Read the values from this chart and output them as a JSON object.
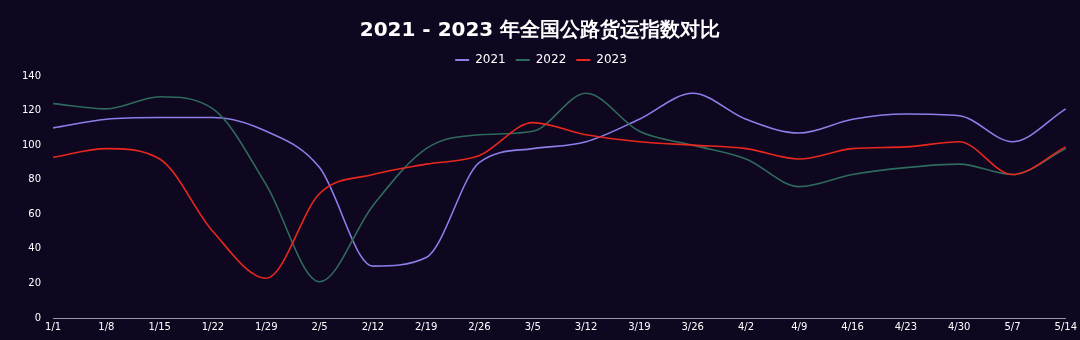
{
  "chart_data": {
    "type": "line",
    "title": "2021 - 2023 年全国公路货运指数对比",
    "categories": [
      "1/1",
      "1/8",
      "1/15",
      "1/22",
      "1/29",
      "2/5",
      "2/12",
      "2/19",
      "2/26",
      "3/5",
      "3/12",
      "3/19",
      "3/26",
      "4/2",
      "4/9",
      "4/16",
      "4/23",
      "4/30",
      "5/7",
      "5/14"
    ],
    "series": [
      {
        "name": "2021",
        "color": "#8a7fe8",
        "values": [
          110,
          115,
          116,
          116,
          108,
          87,
          30,
          35,
          90,
          98,
          102,
          115,
          130,
          115,
          107,
          115,
          118,
          117,
          102,
          121
        ]
      },
      {
        "name": "2022",
        "color": "#2e6b5c",
        "values": [
          124,
          121,
          128,
          121,
          77,
          21,
          65,
          98,
          106,
          108,
          130,
          108,
          100,
          92,
          76,
          83,
          87,
          89,
          83,
          98
        ]
      },
      {
        "name": "2023",
        "color": "#e8281e",
        "values": [
          93,
          98,
          92,
          50,
          23,
          72,
          83,
          89,
          94,
          113,
          106,
          102,
          100,
          98,
          92,
          98,
          99,
          102,
          83,
          99
        ]
      }
    ],
    "ylim": [
      0,
      140
    ],
    "yticks": [
      0,
      20,
      40,
      60,
      80,
      100,
      120,
      140
    ],
    "grid": false,
    "legend": "top",
    "marker": "none",
    "line_style": "solid"
  }
}
